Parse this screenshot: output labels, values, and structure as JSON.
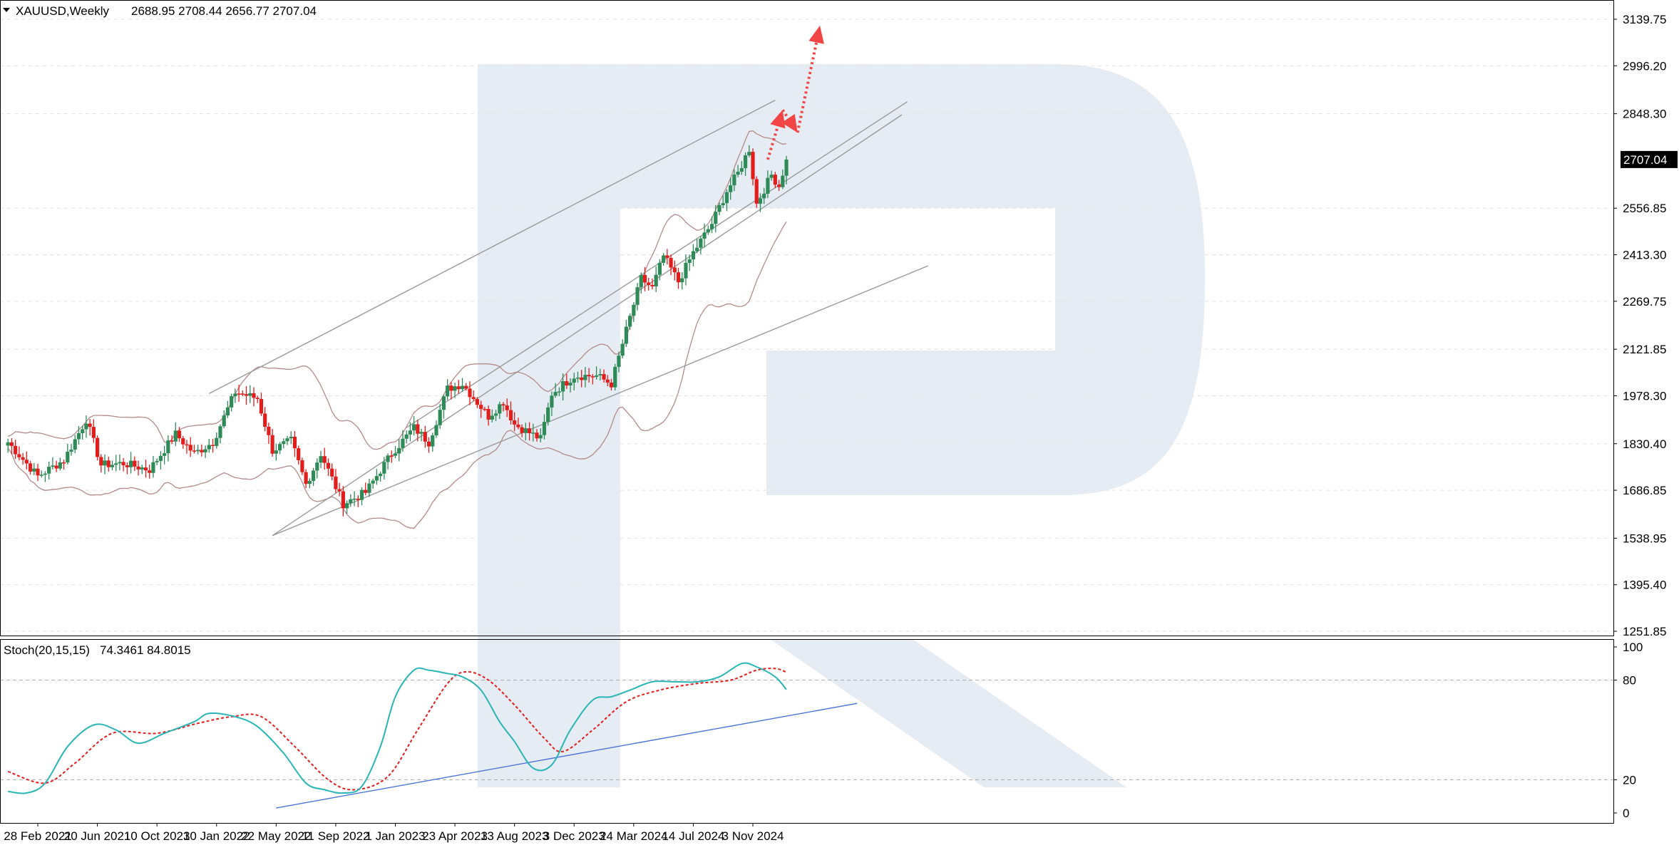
{
  "header": {
    "symbol": "XAUUSD,Weekly",
    "ohlc": "2688.95 2708.44 2656.77 2707.04"
  },
  "current_price_label": "2707.04",
  "stoch_header": {
    "name": "Stoch(20,15,15)",
    "values": "74.3461 84.8015"
  },
  "colors": {
    "bull": "#2e8b57",
    "bear": "#e31c1c",
    "bands": "#b48a8a",
    "stoch_main": "#28b5b5",
    "stoch_signal": "#e31c1c",
    "trend": "#9a9a9a",
    "stoch_trend": "#4a74d8",
    "arrow": "#f24646",
    "watermark": "#dde5ef"
  },
  "chart_data": [
    {
      "type": "candlestick",
      "symbol": "XAUUSD",
      "timeframe": "Weekly",
      "y_ticks": [
        "3139.75",
        "2996.20",
        "2848.30",
        "2556.85",
        "2413.30",
        "2269.75",
        "2121.85",
        "1978.30",
        "1830.40",
        "1686.85",
        "1538.95",
        "1395.40",
        "1251.85"
      ],
      "ylim": [
        1251.85,
        3139.75
      ],
      "current_price": 2707.04,
      "x_ticks": [
        "28 Feb 2021",
        "20 Jun 2021",
        "10 Oct 2021",
        "30 Jan 2022",
        "22 May 2022",
        "11 Sep 2022",
        "1 Jan 2023",
        "23 Apr 2023",
        "13 Aug 2023",
        "3 Dec 2023",
        "24 Mar 2024",
        "14 Jul 2024",
        "3 Nov 2024"
      ],
      "trend_lines": [
        {
          "x": [
            "2022-01-16",
            "2024-12-15"
          ],
          "y": [
            1985,
            2890
          ]
        },
        {
          "x": [
            "2022-05-15",
            "2025-08-10"
          ],
          "y": [
            1547,
            2845
          ]
        },
        {
          "x": [
            "2022-05-15",
            "2025-09-28"
          ],
          "y": [
            1547,
            2379
          ]
        },
        {
          "x": [
            "2023-01-22",
            "2025-08-20"
          ],
          "y": [
            1880,
            2885
          ]
        }
      ],
      "forecast_path": [
        {
          "x": "2024-12-01",
          "y": 2707
        },
        {
          "x": "2024-12-29",
          "y": 2860
        },
        {
          "x": "2025-01-26",
          "y": 2790
        },
        {
          "x": "2025-03-09",
          "y": 3120
        }
      ]
    },
    {
      "type": "line",
      "indicator": "Stoch(20,15,15)",
      "y_ticks": [
        "100",
        "80",
        "20",
        "0"
      ],
      "ylim": [
        0,
        100
      ],
      "levels": [
        80,
        20
      ],
      "main_last": 74.3461,
      "signal_last": 84.8015,
      "trend_line": {
        "x": [
          "2022-05-22",
          "2025-05-18"
        ],
        "y": [
          3,
          66
        ]
      }
    }
  ]
}
